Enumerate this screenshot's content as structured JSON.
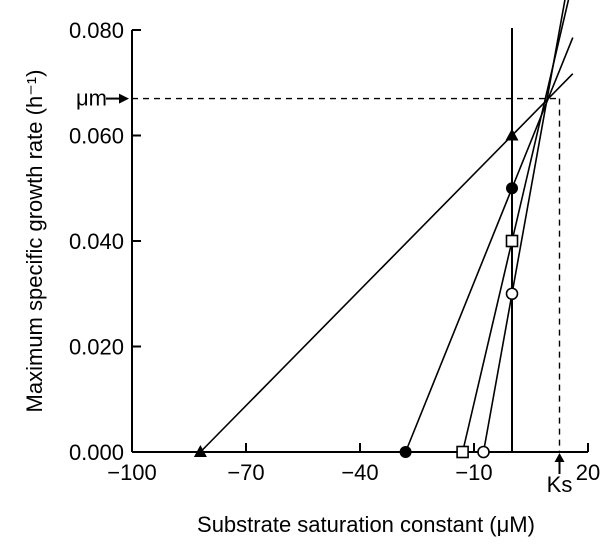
{
  "chart_data": {
    "type": "line",
    "xlabel": "Substrate saturation constant (μM)",
    "ylabel": "Maximum specific growth rate (h⁻¹)",
    "xlim": [
      -100,
      20
    ],
    "ylim": [
      0,
      0.08
    ],
    "x_ticks": [
      {
        "value": -100,
        "label": "−100"
      },
      {
        "value": -70,
        "label": "−70"
      },
      {
        "value": -40,
        "label": "−40"
      },
      {
        "value": -10,
        "label": "−10"
      },
      {
        "value": 20,
        "label": "20"
      }
    ],
    "y_ticks": [
      {
        "value": 0.0,
        "label": "0.000"
      },
      {
        "value": 0.02,
        "label": "0.020"
      },
      {
        "value": 0.04,
        "label": "0.040"
      },
      {
        "value": 0.06,
        "label": "0.060"
      },
      {
        "value": 0.08,
        "label": "0.080"
      }
    ],
    "vertical_line_x": 0,
    "intersection": {
      "x": 12.5,
      "y": 0.067
    },
    "annotations": {
      "mu_label": "μm",
      "ks_label": "Ks"
    },
    "series": [
      {
        "marker": "filled-triangle",
        "x_intercept": -82,
        "y_intercept": 0.06
      },
      {
        "marker": "filled-circle",
        "x_intercept": -28,
        "y_intercept": 0.05
      },
      {
        "marker": "open-square",
        "x_intercept": -13,
        "y_intercept": 0.04
      },
      {
        "marker": "open-circle",
        "x_intercept": -7.5,
        "y_intercept": 0.03
      }
    ],
    "grid": false,
    "legend": "none"
  }
}
